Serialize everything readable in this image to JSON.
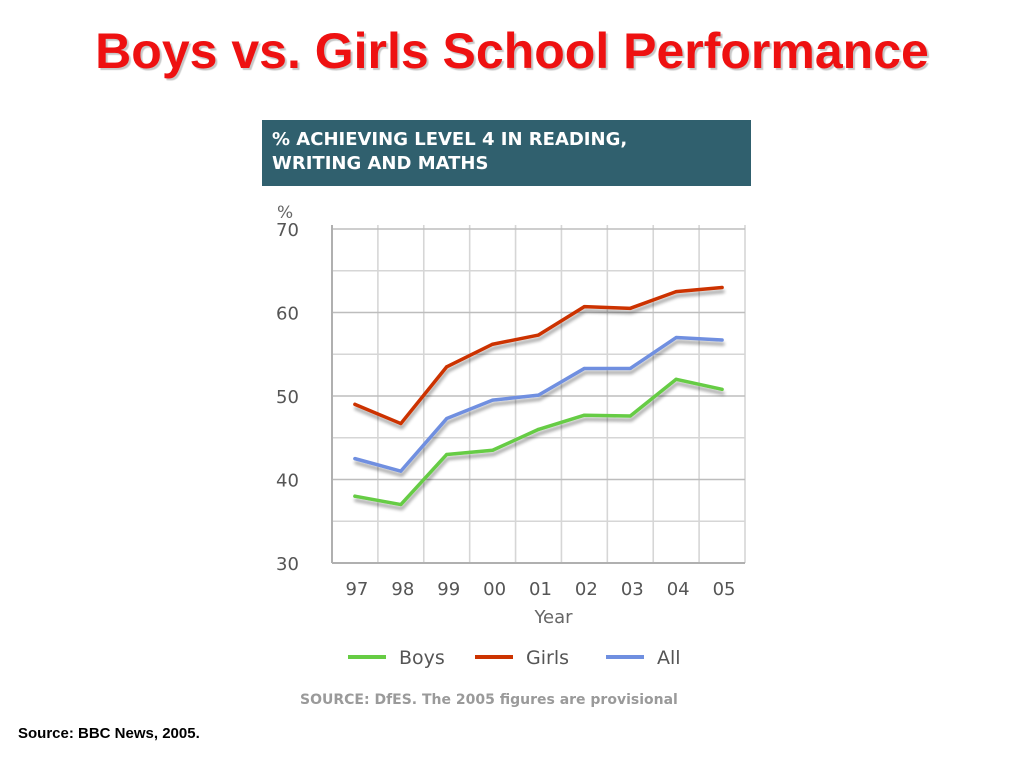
{
  "slide": {
    "title": "Boys vs. Girls School Performance",
    "source_note": "Source: BBC News, 2005."
  },
  "chart_data": {
    "type": "line",
    "title": "% ACHIEVING LEVEL 4 IN READING, WRITING AND MATHS",
    "title_lines": [
      "% ACHIEVING LEVEL 4 IN READING,",
      "WRITING AND MATHS"
    ],
    "ylabel": "%",
    "xlabel": "Year",
    "x": [
      "97",
      "98",
      "99",
      "00",
      "01",
      "02",
      "03",
      "04",
      "05"
    ],
    "ylim": [
      30,
      70
    ],
    "yticks": [
      "30",
      "40",
      "50",
      "60",
      "70"
    ],
    "grid": true,
    "legend_position": "bottom",
    "series": [
      {
        "name": "Boys",
        "color": "#66cc44",
        "values": [
          38,
          37,
          43,
          43.5,
          46,
          47.7,
          47.6,
          52,
          50.8
        ]
      },
      {
        "name": "Girls",
        "color": "#cc3300",
        "values": [
          49,
          46.7,
          53.5,
          56.2,
          57.3,
          60.7,
          60.5,
          62.5,
          63
        ]
      },
      {
        "name": "All",
        "color": "#6f8fe0",
        "values": [
          42.5,
          41,
          47.3,
          49.5,
          50.1,
          53.3,
          53.3,
          57,
          56.7
        ]
      }
    ],
    "source": "SOURCE: DfES. The 2005 figures are provisional"
  }
}
